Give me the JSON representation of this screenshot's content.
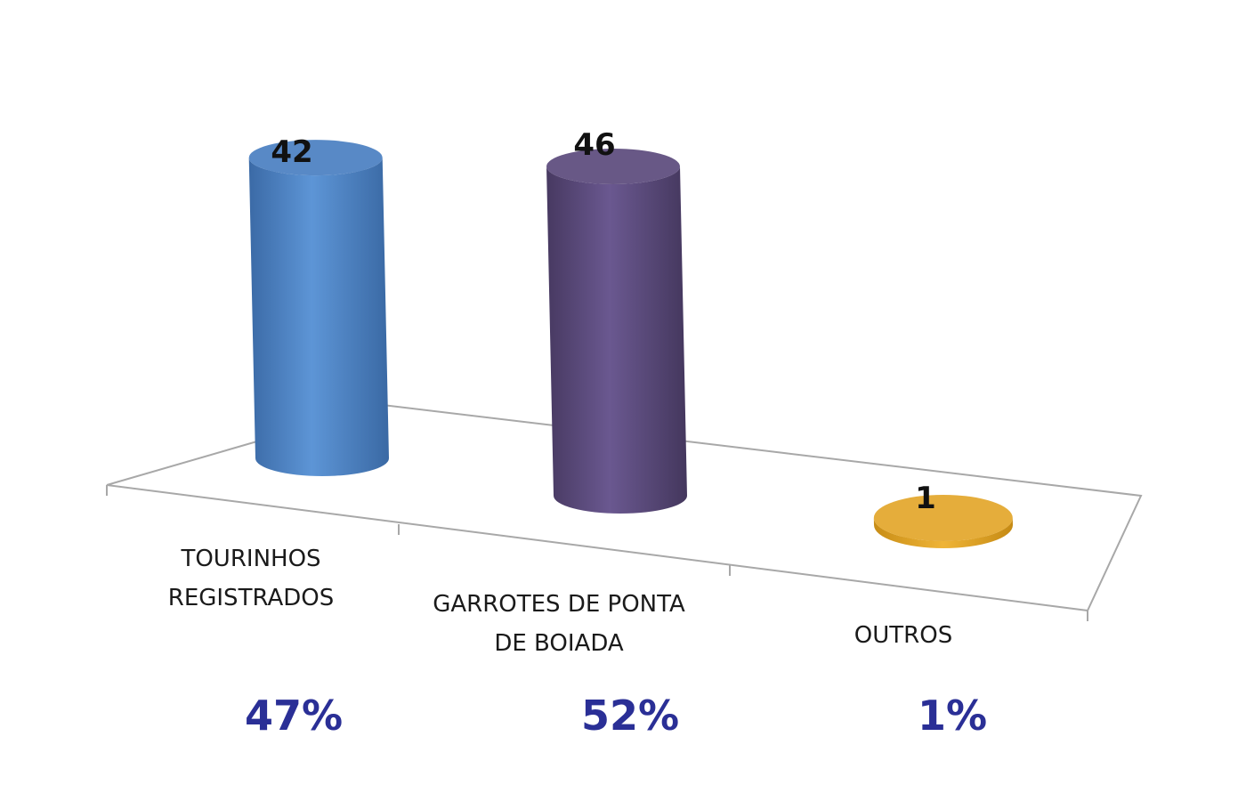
{
  "chart_data": {
    "type": "bar",
    "categories": [
      [
        "TOURINHOS",
        "REGISTRADOS"
      ],
      [
        "GARROTES DE PONTA",
        "DE BOIADA"
      ],
      [
        "OUTROS"
      ]
    ],
    "values": [
      42,
      46,
      1
    ],
    "value_labels": [
      "42",
      "46",
      "1"
    ],
    "percent_labels": [
      "47%",
      "52%",
      "1%"
    ],
    "colors": [
      "#4a7fc1",
      "#5b4a7c",
      "#e3a62a"
    ],
    "title": "",
    "xlabel": "",
    "ylabel": "",
    "ylim": [
      0,
      46
    ],
    "grid": false,
    "legend": "none",
    "style": "3d-cylinder"
  }
}
